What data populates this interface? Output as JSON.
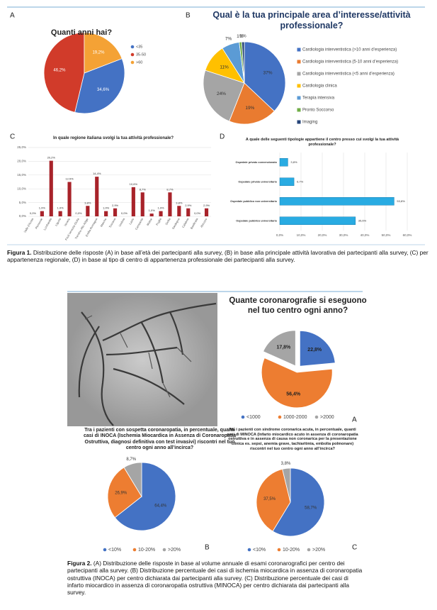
{
  "chart_data": [
    {
      "type": "pie",
      "panel": "A",
      "title": "Quanti anni hai?",
      "categories": [
        "<35",
        "35-50",
        ">60"
      ],
      "values": [
        34.6,
        46.2,
        19.2
      ],
      "value_labels": [
        "34,6%",
        "46,2%",
        "19,2%"
      ],
      "colors": [
        "#4472c4",
        "#d13b2a",
        "#f4a235"
      ]
    },
    {
      "type": "pie",
      "panel": "B",
      "title": "Qual è la tua principale area d’interesse/attività professionale?",
      "categories": [
        "Cardiologia interventistica (>10 anni d’esperienza)",
        "Cardiologia interventistica (5-10 anni d’esperienza)",
        "Cardiologia interventistica (<5 anni d’esperienza)",
        "Cardiologia clinica",
        "Terapia intensiva",
        "Pronto Soccorso",
        "Imaging"
      ],
      "values": [
        37,
        19,
        24,
        11,
        7,
        1,
        1
      ],
      "value_labels": [
        "37%",
        "19%",
        "24%",
        "11%",
        "7%",
        "1%",
        "1%"
      ],
      "colors": [
        "#4472c4",
        "#e97b30",
        "#a5a5a5",
        "#ffc000",
        "#5b9bd5",
        "#70ad47",
        "#264478"
      ]
    },
    {
      "type": "bar",
      "panel": "C",
      "title": "In quale regione italiana svolgi la tua attività professionale?",
      "categories": [
        "Valle d'Aosta",
        "Piemonte",
        "Lombardia",
        "Liguria",
        "Veneto",
        "Friuli Venezia Giulia",
        "Trentino Alto Adige",
        "Emilia Romagna",
        "Marche",
        "Toscana",
        "Umbria",
        "Lazio",
        "Campania",
        "Molise",
        "Puglia",
        "Sicilia",
        "Sardegna",
        "Calabria",
        "Basilicata",
        "Abruzzo"
      ],
      "values": [
        0,
        1.9,
        20.2,
        1.9,
        12.5,
        0,
        3.8,
        14.4,
        1.9,
        2.9,
        0,
        10.6,
        8.7,
        1.0,
        1.9,
        8.7,
        3.8,
        2.9,
        0,
        2.9
      ],
      "value_labels": [
        "0,0%",
        "1,9%",
        "20,2%",
        "1,9%",
        "12,5%",
        "0,0%",
        "3,8%",
        "14,4%",
        "1,9%",
        "2,9%",
        "0,0%",
        "10,6%",
        "8,7%",
        "1,0%",
        "1,9%",
        "8,7%",
        "3,8%",
        "2,9%",
        "0,0%",
        "2,9%"
      ],
      "color": "#a8232a",
      "ylim": [
        0,
        25
      ],
      "yticks": [
        {
          "value": 0,
          "label": "0,0%"
        },
        {
          "value": 5,
          "label": "5,0%"
        },
        {
          "value": 10,
          "label": "10,0%"
        },
        {
          "value": 15,
          "label": "15,0%"
        },
        {
          "value": 20,
          "label": "20,0%"
        },
        {
          "value": 25,
          "label": "25,0%"
        }
      ],
      "grid": true
    },
    {
      "type": "hbar",
      "panel": "D",
      "title": "A quale delle seguenti tipologie appartiene il centro presso cui svolgi la tua attività professionale?",
      "categories": [
        "Ospedale privato convenzionato",
        "Ospedale privato universitario",
        "Ospedale pubblico non universitario",
        "Ospedale pubblico universitario"
      ],
      "values": [
        3.8,
        6.7,
        53.8,
        35.6
      ],
      "value_labels": [
        "3,8%",
        "6,7%",
        "53,8%",
        "35,6%"
      ],
      "color": "#29abe2",
      "xlim": [
        0,
        60
      ],
      "xticks": [
        {
          "value": 0,
          "label": "0,0%"
        },
        {
          "value": 10,
          "label": "10,0%"
        },
        {
          "value": 20,
          "label": "20,0%"
        },
        {
          "value": 30,
          "label": "30,0%"
        },
        {
          "value": 40,
          "label": "40,0%"
        },
        {
          "value": 50,
          "label": "50,0%"
        },
        {
          "value": 60,
          "label": "60,0%"
        }
      ],
      "grid": true
    },
    {
      "type": "pie",
      "panel": "A",
      "title": "Quante coronarografie si eseguono nel tuo centro ogni anno?",
      "categories": [
        "<1000",
        "1000-2000",
        ">2000"
      ],
      "values": [
        22.8,
        56.4,
        17.8
      ],
      "value_labels": [
        "22,8%",
        "56,4%",
        "17,8%"
      ],
      "colors": [
        "#4472c4",
        "#ed7d31",
        "#a5a5a5"
      ]
    },
    {
      "type": "pie",
      "panel": "B",
      "title": "Tra i pazienti con sospetta coronaropatia, in percentuale, quanti casi di INOCA (Ischemia Miocardica in Assenza di Coronaropatia Ostruttiva, diagnosi definitiva con test invasivi) riscontri nel tuo centro ogni anno all’incirca?",
      "categories": [
        "<10%",
        "10-20%",
        ">20%"
      ],
      "values": [
        64.4,
        26.9,
        8.7
      ],
      "value_labels": [
        "64,4%",
        "26,9%",
        "8,7%"
      ],
      "colors": [
        "#4472c4",
        "#ed7d31",
        "#a5a5a5"
      ]
    },
    {
      "type": "pie",
      "panel": "C",
      "title": "Tra i pazienti con sindrome coronarica acuta, in percentuale, quanti casi di MINOCA (Infarto miocardico acuto in assenza di coronaropatia ostruttiva e in assenza di causa non coronarica per la presentazione clinica es. sepsi, anemia grave, tachiaritmia, embolia polmonare) riscontri nel tuo centro ogni anno all’incirca?",
      "categories": [
        "<10%",
        "10-20%",
        ">20%"
      ],
      "values": [
        58.7,
        37.5,
        3.8
      ],
      "value_labels": [
        "58,7%",
        "37,5%",
        "3,8%"
      ],
      "colors": [
        "#4472c4",
        "#ed7d31",
        "#a5a5a5"
      ]
    }
  ],
  "captions": [
    {
      "label": "Figura 1.",
      "text": "Distribuzione delle risposte (A) in base all’età dei partecipanti alla survey, (B) in base alla principale attività lavorativa dei partecipanti alla survey, (C) per appartenenza regionale, (D) in base al tipo di centro di appartenenza professionale dei partecipanti alla survey."
    },
    {
      "label": "Figura 2.",
      "text": "(A) Distribuzione delle risposte in base al volume annuale di esami coronarografici per centro dei partecipanti alla survey. (B) Distribuzione percentuale dei casi di ischemia miocardica in assenza di coronaropatia ostruttiva (INOCA) per centro dichiarata dai partecipanti alla survey. (C) Distribuzione percentuale dei casi di infarto miocardico in assenza di coronaropatia ostruttiva (MINOCA) per centro dichiarata dai partecipanti alla survey."
    }
  ]
}
